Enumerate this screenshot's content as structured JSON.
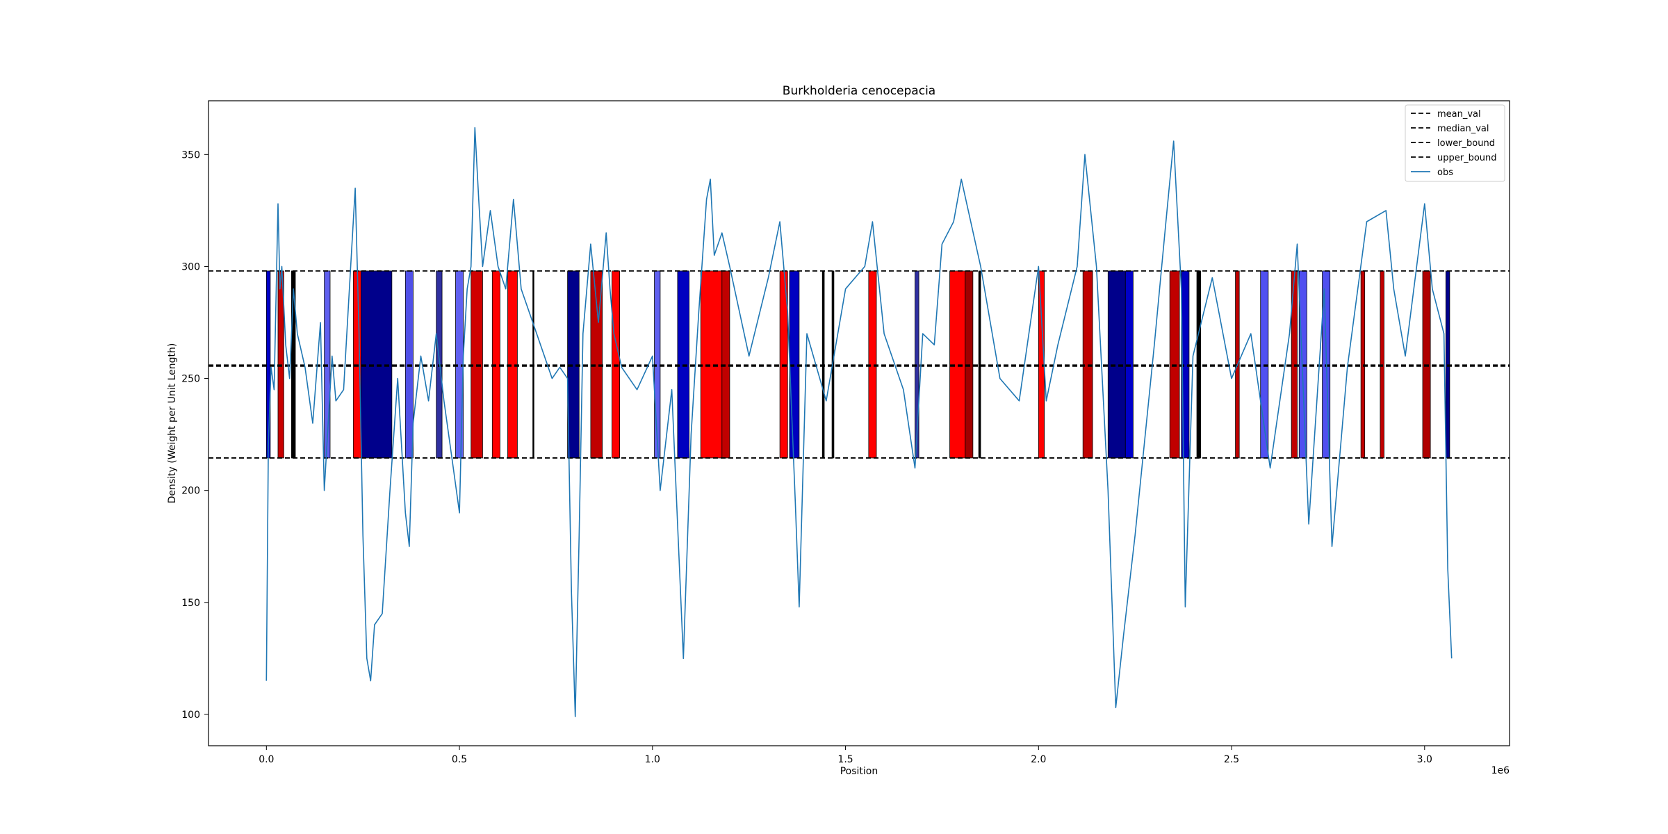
{
  "chart_data": {
    "type": "line",
    "title": "Burkholderia cenocepacia",
    "xlabel": "Position",
    "ylabel": "Density (Weight per Unit Length)",
    "x_offset_label": "1e6",
    "xlim": [
      -0.15,
      3.22
    ],
    "ylim": [
      86,
      374
    ],
    "x_ticks": [
      0.0,
      0.5,
      1.0,
      1.5,
      2.0,
      2.5,
      3.0
    ],
    "x_tick_labels": [
      "0.0",
      "0.5",
      "1.0",
      "1.5",
      "2.0",
      "2.5",
      "3.0"
    ],
    "y_ticks": [
      100,
      150,
      200,
      250,
      300,
      350
    ],
    "y_tick_labels": [
      "100",
      "150",
      "200",
      "250",
      "300",
      "350"
    ],
    "grid": false,
    "legend_position": "top-right",
    "reference_lines": [
      {
        "name": "mean_val",
        "y": 256,
        "color": "#000000",
        "dash": "dashed"
      },
      {
        "name": "median_val",
        "y": 255.5,
        "color": "#000000",
        "dash": "dashed"
      },
      {
        "name": "lower_bound",
        "y": 214.5,
        "color": "#000000",
        "dash": "dashed"
      },
      {
        "name": "upper_bound",
        "y": 298,
        "color": "#000000",
        "dash": "dashed"
      }
    ],
    "series": [
      {
        "name": "obs",
        "color": "#1f77b4",
        "x": [
          0.0,
          0.005,
          0.012,
          0.02,
          0.03,
          0.035,
          0.04,
          0.05,
          0.06,
          0.07,
          0.08,
          0.1,
          0.12,
          0.14,
          0.15,
          0.16,
          0.17,
          0.18,
          0.2,
          0.22,
          0.23,
          0.24,
          0.25,
          0.26,
          0.27,
          0.28,
          0.3,
          0.32,
          0.34,
          0.36,
          0.37,
          0.38,
          0.4,
          0.42,
          0.44,
          0.46,
          0.48,
          0.5,
          0.51,
          0.52,
          0.53,
          0.54,
          0.55,
          0.56,
          0.58,
          0.6,
          0.62,
          0.64,
          0.66,
          0.7,
          0.74,
          0.76,
          0.78,
          0.79,
          0.8,
          0.81,
          0.82,
          0.84,
          0.86,
          0.88,
          0.89,
          0.9,
          0.92,
          0.96,
          1.0,
          1.02,
          1.05,
          1.07,
          1.08,
          1.1,
          1.12,
          1.14,
          1.15,
          1.16,
          1.18,
          1.2,
          1.25,
          1.3,
          1.33,
          1.35,
          1.37,
          1.38,
          1.4,
          1.45,
          1.5,
          1.55,
          1.57,
          1.6,
          1.65,
          1.68,
          1.7,
          1.73,
          1.75,
          1.78,
          1.8,
          1.85,
          1.9,
          1.95,
          2.0,
          2.02,
          2.05,
          2.1,
          2.12,
          2.15,
          2.18,
          2.2,
          2.22,
          2.25,
          2.3,
          2.33,
          2.35,
          2.37,
          2.38,
          2.4,
          2.45,
          2.5,
          2.55,
          2.6,
          2.65,
          2.67,
          2.7,
          2.74,
          2.76,
          2.8,
          2.85,
          2.9,
          2.92,
          2.95,
          3.0,
          3.02,
          3.05,
          3.06,
          3.07
        ],
        "y": [
          115,
          220,
          255,
          245,
          328,
          290,
          300,
          265,
          250,
          290,
          270,
          255,
          230,
          275,
          200,
          230,
          260,
          240,
          245,
          305,
          335,
          270,
          180,
          125,
          115,
          140,
          145,
          200,
          250,
          190,
          175,
          230,
          260,
          240,
          270,
          240,
          215,
          190,
          260,
          290,
          300,
          362,
          330,
          300,
          325,
          300,
          290,
          330,
          290,
          270,
          250,
          255,
          250,
          155,
          99,
          180,
          270,
          310,
          275,
          315,
          290,
          270,
          255,
          245,
          260,
          200,
          245,
          165,
          125,
          225,
          280,
          330,
          339,
          305,
          315,
          300,
          260,
          295,
          320,
          280,
          195,
          148,
          270,
          240,
          290,
          300,
          320,
          270,
          245,
          210,
          270,
          265,
          310,
          320,
          339,
          300,
          250,
          240,
          300,
          240,
          265,
          300,
          350,
          300,
          200,
          103,
          135,
          180,
          265,
          320,
          356,
          290,
          148,
          260,
          295,
          250,
          270,
          210,
          270,
          310,
          185,
          290,
          175,
          255,
          320,
          325,
          290,
          260,
          328,
          290,
          270,
          165,
          125
        ]
      }
    ],
    "bands": [
      {
        "x0": 0.0,
        "x1": 0.01,
        "color": "#0000c8"
      },
      {
        "x0": 0.03,
        "x1": 0.045,
        "color": "#c80000"
      },
      {
        "x0": 0.065,
        "x1": 0.075,
        "color": "#000000"
      },
      {
        "x0": 0.15,
        "x1": 0.165,
        "color": "#6060f0"
      },
      {
        "x0": 0.225,
        "x1": 0.245,
        "color": "#ff0000"
      },
      {
        "x0": 0.245,
        "x1": 0.325,
        "color": "#00008b"
      },
      {
        "x0": 0.36,
        "x1": 0.38,
        "color": "#5050e8"
      },
      {
        "x0": 0.44,
        "x1": 0.455,
        "color": "#3030a0"
      },
      {
        "x0": 0.49,
        "x1": 0.51,
        "color": "#6060f0"
      },
      {
        "x0": 0.53,
        "x1": 0.56,
        "color": "#d00000"
      },
      {
        "x0": 0.585,
        "x1": 0.605,
        "color": "#ff0000"
      },
      {
        "x0": 0.625,
        "x1": 0.65,
        "color": "#ff0000"
      },
      {
        "x0": 0.69,
        "x1": 0.693,
        "color": "#000000"
      },
      {
        "x0": 0.78,
        "x1": 0.81,
        "color": "#00008b"
      },
      {
        "x0": 0.84,
        "x1": 0.87,
        "color": "#c00000"
      },
      {
        "x0": 0.895,
        "x1": 0.915,
        "color": "#ff0000"
      },
      {
        "x0": 1.005,
        "x1": 1.02,
        "color": "#6060f0"
      },
      {
        "x0": 1.065,
        "x1": 1.095,
        "color": "#0000c0"
      },
      {
        "x0": 1.125,
        "x1": 1.18,
        "color": "#ff0000"
      },
      {
        "x0": 1.18,
        "x1": 1.2,
        "color": "#c00000"
      },
      {
        "x0": 1.33,
        "x1": 1.35,
        "color": "#ff0000"
      },
      {
        "x0": 1.355,
        "x1": 1.38,
        "color": "#0000c0"
      },
      {
        "x0": 1.44,
        "x1": 1.445,
        "color": "#000000"
      },
      {
        "x0": 1.465,
        "x1": 1.47,
        "color": "#000000"
      },
      {
        "x0": 1.56,
        "x1": 1.58,
        "color": "#ff0000"
      },
      {
        "x0": 1.68,
        "x1": 1.69,
        "color": "#3030a0"
      },
      {
        "x0": 1.77,
        "x1": 1.81,
        "color": "#ff0000"
      },
      {
        "x0": 1.81,
        "x1": 1.83,
        "color": "#a00000"
      },
      {
        "x0": 1.845,
        "x1": 1.85,
        "color": "#000000"
      },
      {
        "x0": 2.0,
        "x1": 2.015,
        "color": "#ff0000"
      },
      {
        "x0": 2.115,
        "x1": 2.14,
        "color": "#c00000"
      },
      {
        "x0": 2.18,
        "x1": 2.225,
        "color": "#00008b"
      },
      {
        "x0": 2.225,
        "x1": 2.245,
        "color": "#0000c8"
      },
      {
        "x0": 2.34,
        "x1": 2.365,
        "color": "#c00000"
      },
      {
        "x0": 2.37,
        "x1": 2.39,
        "color": "#0000c0"
      },
      {
        "x0": 2.41,
        "x1": 2.42,
        "color": "#000000"
      },
      {
        "x0": 2.51,
        "x1": 2.52,
        "color": "#c00000"
      },
      {
        "x0": 2.575,
        "x1": 2.595,
        "color": "#5050f0"
      },
      {
        "x0": 2.655,
        "x1": 2.67,
        "color": "#c00000"
      },
      {
        "x0": 2.675,
        "x1": 2.695,
        "color": "#5050f0"
      },
      {
        "x0": 2.735,
        "x1": 2.755,
        "color": "#5050f0"
      },
      {
        "x0": 2.835,
        "x1": 2.845,
        "color": "#c00000"
      },
      {
        "x0": 2.885,
        "x1": 2.895,
        "color": "#c00000"
      },
      {
        "x0": 2.995,
        "x1": 3.015,
        "color": "#b00000"
      },
      {
        "x0": 3.055,
        "x1": 3.065,
        "color": "#00008b"
      }
    ]
  }
}
